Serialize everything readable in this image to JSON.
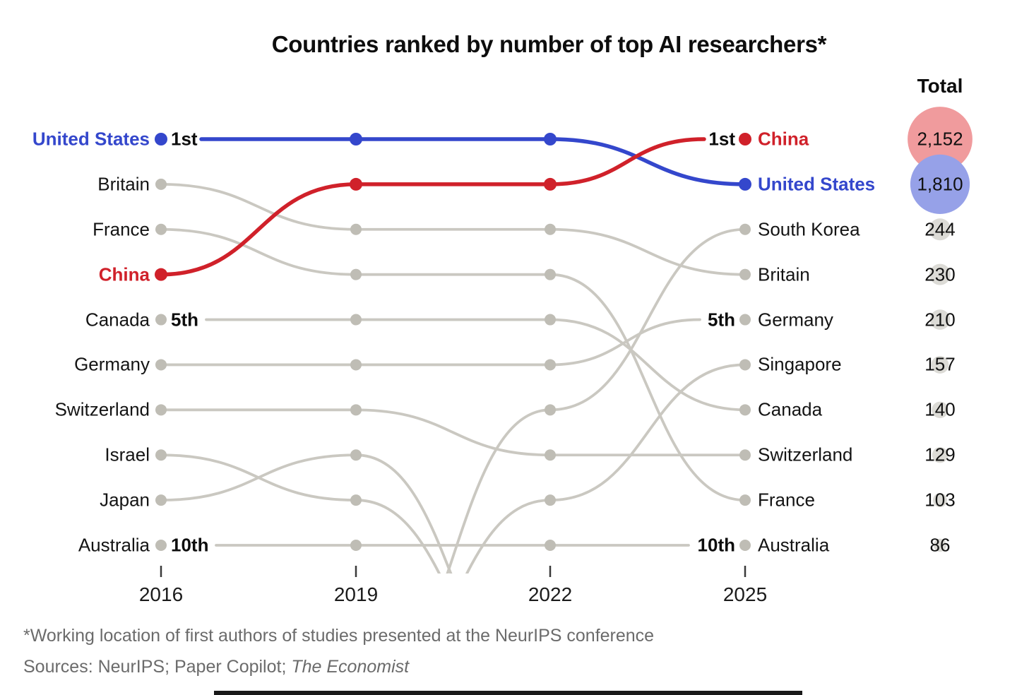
{
  "title": "Countries ranked by number of top AI researchers*",
  "totals_header": "Total",
  "footnote": "*Working location of first authors of studies presented at the NeurIPS conference",
  "sources_prefix": "Sources: NeurIPS; Paper Copilot; ",
  "sources_italic": "The Economist",
  "colors": {
    "blue": "#3447cc",
    "red": "#d0212a",
    "gray_line": "#cac8c1",
    "gray_dot": "#bfbdb5",
    "total_red_circle": "#f09b9d",
    "total_blue_circle": "#96a1e8",
    "total_gray_circle": "#dcdbd6",
    "text": "#141414",
    "muted": "#6b6b6b"
  },
  "chart_data": {
    "type": "bump",
    "x": [
      "2016",
      "2019",
      "2022",
      "2025"
    ],
    "rank_range": [
      1,
      10
    ],
    "note": "rank 1 = most top AI researchers; null = outside top 10",
    "series": [
      {
        "name": "United States",
        "color": "blue",
        "ranks": [
          1,
          1,
          1,
          2
        ],
        "total": 1810,
        "total_label": "1,810",
        "ann_left": "1st",
        "ann_right": null
      },
      {
        "name": "Britain",
        "ranks": [
          2,
          3,
          3,
          4
        ],
        "total": 230,
        "total_label": "230",
        "ann_left": null,
        "ann_right": null
      },
      {
        "name": "France",
        "ranks": [
          3,
          4,
          4,
          9
        ],
        "total": 103,
        "total_label": "103",
        "ann_left": null,
        "ann_right": null
      },
      {
        "name": "China",
        "color": "red",
        "ranks": [
          4,
          2,
          2,
          1
        ],
        "total": 2152,
        "total_label": "2,152",
        "ann_left": null,
        "ann_right": "1st"
      },
      {
        "name": "Canada",
        "ranks": [
          5,
          5,
          5,
          7
        ],
        "total": 140,
        "total_label": "140",
        "ann_left": "5th",
        "ann_right": null
      },
      {
        "name": "Germany",
        "ranks": [
          6,
          6,
          6,
          5
        ],
        "total": 210,
        "total_label": "210",
        "ann_left": null,
        "ann_right": "5th"
      },
      {
        "name": "Switzerland",
        "ranks": [
          7,
          7,
          8,
          8
        ],
        "total": 129,
        "total_label": "129",
        "ann_left": null,
        "ann_right": null
      },
      {
        "name": "Israel",
        "ranks": [
          8,
          9,
          null,
          null
        ],
        "total": null,
        "total_label": null,
        "ann_left": null,
        "ann_right": null
      },
      {
        "name": "Japan",
        "ranks": [
          9,
          8,
          null,
          null
        ],
        "total": null,
        "total_label": null,
        "ann_left": null,
        "ann_right": null
      },
      {
        "name": "Australia",
        "ranks": [
          10,
          10,
          10,
          10
        ],
        "total": 86,
        "total_label": "86",
        "ann_left": "10th",
        "ann_right": "10th"
      },
      {
        "name": "South Korea",
        "ranks": [
          null,
          null,
          7,
          3
        ],
        "total": 244,
        "total_label": "244",
        "ann_left": null,
        "ann_right": null
      },
      {
        "name": "Singapore",
        "ranks": [
          null,
          null,
          9,
          6
        ],
        "total": 157,
        "total_label": "157",
        "ann_left": null,
        "ann_right": null
      }
    ]
  }
}
